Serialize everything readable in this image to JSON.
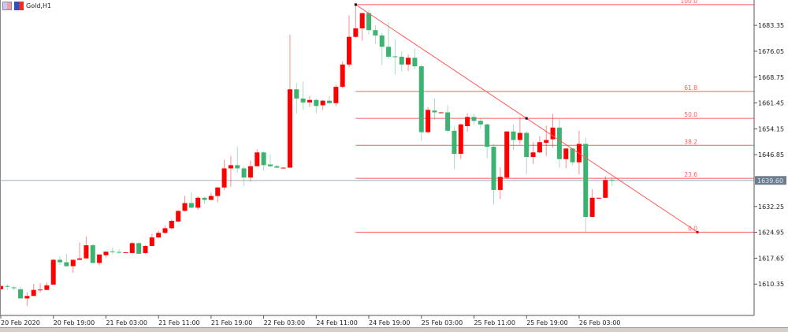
{
  "window": {
    "symbol_title": "Gold,H1",
    "icons": [
      "chart-window-icon",
      "bar-chart-icon"
    ]
  },
  "colors": {
    "bull": "#ff0000",
    "bear": "#3cb371",
    "fibo": "#ff5a5a",
    "trendline": "#ff5a5a",
    "current_price_line": "#c0c8d0",
    "current_price_label_bg": "#6b7d8f",
    "background": "#ffffff"
  },
  "chart_data": {
    "type": "candlestick",
    "title": "Gold,H1",
    "ohlc_order": [
      "open",
      "high",
      "low",
      "close"
    ],
    "candles": [
      [
        1608.9,
        1610.0,
        1608.7,
        1609.8
      ],
      [
        1609.8,
        1610.2,
        1608.7,
        1609.6
      ],
      [
        1609.4,
        1609.8,
        1608.5,
        1609.3
      ],
      [
        1608.9,
        1609.6,
        1606.3,
        1606.3
      ],
      [
        1606.3,
        1608.0,
        1604.1,
        1607.0
      ],
      [
        1607.0,
        1610.4,
        1607.0,
        1608.7
      ],
      [
        1608.6,
        1610.6,
        1608.0,
        1608.8
      ],
      [
        1608.7,
        1610.8,
        1608.7,
        1610.0
      ],
      [
        1610.2,
        1617.4,
        1610.2,
        1617.2
      ],
      [
        1617.2,
        1618.2,
        1615.7,
        1616.5
      ],
      [
        1616.5,
        1618.9,
        1615.2,
        1615.4
      ],
      [
        1615.4,
        1617.2,
        1613.5,
        1617.2
      ],
      [
        1617.2,
        1622.1,
        1617.2,
        1617.6
      ],
      [
        1617.6,
        1623.8,
        1617.6,
        1621.3
      ],
      [
        1621.3,
        1621.7,
        1616.3,
        1616.3
      ],
      [
        1616.3,
        1618.7,
        1615.6,
        1618.7
      ],
      [
        1618.5,
        1619.5,
        1617.8,
        1619.5
      ],
      [
        1619.6,
        1620.6,
        1618.9,
        1619.4
      ],
      [
        1619.4,
        1620.2,
        1618.9,
        1619.3
      ],
      [
        1619.3,
        1619.4,
        1619.2,
        1619.3
      ],
      [
        1619.1,
        1622.3,
        1619.0,
        1621.9
      ],
      [
        1621.9,
        1622.3,
        1618.9,
        1618.9
      ],
      [
        1619.1,
        1621.3,
        1618.9,
        1621.1
      ],
      [
        1621.1,
        1624.5,
        1621.0,
        1623.5
      ],
      [
        1623.5,
        1625.4,
        1623.4,
        1624.8
      ],
      [
        1624.8,
        1626.8,
        1624.5,
        1626.1
      ],
      [
        1626.1,
        1628.6,
        1625.8,
        1628.2
      ],
      [
        1628.0,
        1631.2,
        1627.8,
        1631.0
      ],
      [
        1631.0,
        1635.2,
        1630.8,
        1633.2
      ],
      [
        1633.2,
        1636.3,
        1631.7,
        1631.9
      ],
      [
        1631.9,
        1635.1,
        1631.3,
        1634.7
      ],
      [
        1634.7,
        1635.0,
        1633.0,
        1634.1
      ],
      [
        1634.1,
        1636.1,
        1634.0,
        1635.2
      ],
      [
        1635.2,
        1637.8,
        1633.4,
        1637.6
      ],
      [
        1637.6,
        1645.4,
        1636.9,
        1643.0
      ],
      [
        1643.0,
        1646.5,
        1637.8,
        1643.9
      ],
      [
        1643.9,
        1649.1,
        1641.7,
        1643.0
      ],
      [
        1643.0,
        1643.6,
        1638.0,
        1640.4
      ],
      [
        1640.4,
        1645.2,
        1639.3,
        1643.6
      ],
      [
        1643.6,
        1648.4,
        1643.4,
        1647.5
      ],
      [
        1647.5,
        1647.9,
        1642.3,
        1643.9
      ],
      [
        1644.1,
        1646.9,
        1643.2,
        1643.6
      ],
      [
        1643.6,
        1644.0,
        1643.0,
        1643.2
      ],
      [
        1643.2,
        1643.3,
        1643.1,
        1643.2
      ],
      [
        1643.2,
        1680.7,
        1643.2,
        1665.3
      ],
      [
        1665.3,
        1667.1,
        1658.4,
        1662.7
      ],
      [
        1662.7,
        1667.5,
        1659.5,
        1661.6
      ],
      [
        1661.6,
        1663.4,
        1660.3,
        1662.3
      ],
      [
        1662.3,
        1662.7,
        1658.6,
        1660.6
      ],
      [
        1660.8,
        1662.3,
        1659.5,
        1662.1
      ],
      [
        1662.1,
        1663.4,
        1661.2,
        1661.4
      ],
      [
        1661.4,
        1666.6,
        1660.6,
        1666.0
      ],
      [
        1666.0,
        1673.1,
        1665.6,
        1672.3
      ],
      [
        1672.3,
        1686.2,
        1671.6,
        1680.1
      ],
      [
        1680.1,
        1689.2,
        1679.9,
        1682.5
      ],
      [
        1682.5,
        1686.8,
        1679.0,
        1686.8
      ],
      [
        1686.8,
        1687.7,
        1680.7,
        1682.0
      ],
      [
        1682.0,
        1683.35,
        1678.1,
        1680.5
      ],
      [
        1680.5,
        1681.2,
        1672.1,
        1677.3
      ],
      [
        1677.3,
        1684.2,
        1673.8,
        1674.5
      ],
      [
        1674.6,
        1679.4,
        1669.5,
        1674.4
      ],
      [
        1674.5,
        1676.0,
        1670.3,
        1672.3
      ],
      [
        1672.3,
        1675.1,
        1670.5,
        1674.2
      ],
      [
        1674.2,
        1676.8,
        1671.0,
        1671.8
      ],
      [
        1671.8,
        1672.3,
        1650.8,
        1653.2
      ],
      [
        1653.2,
        1660.3,
        1653.0,
        1659.5
      ],
      [
        1659.3,
        1662.7,
        1656.7,
        1658.8
      ],
      [
        1658.8,
        1658.9,
        1658.7,
        1658.8
      ],
      [
        1658.8,
        1660.8,
        1653.0,
        1653.6
      ],
      [
        1653.6,
        1654.7,
        1642.8,
        1647.1
      ],
      [
        1647.1,
        1655.6,
        1645.6,
        1655.4
      ],
      [
        1654.9,
        1658.6,
        1653.4,
        1657.5
      ],
      [
        1657.5,
        1658.4,
        1655.4,
        1656.4
      ],
      [
        1656.4,
        1657.1,
        1654.3,
        1655.4
      ],
      [
        1655.4,
        1655.6,
        1645.8,
        1649.1
      ],
      [
        1649.1,
        1649.9,
        1632.8,
        1636.9
      ],
      [
        1636.9,
        1643.4,
        1634.3,
        1640.6
      ],
      [
        1640.4,
        1653.6,
        1640.0,
        1653.4
      ],
      [
        1653.4,
        1655.4,
        1648.2,
        1651.0
      ],
      [
        1651.0,
        1657.3,
        1649.9,
        1653.0
      ],
      [
        1653.0,
        1653.6,
        1641.3,
        1646.2
      ],
      [
        1646.2,
        1650.4,
        1644.3,
        1647.5
      ],
      [
        1647.5,
        1652.1,
        1647.3,
        1650.4
      ],
      [
        1650.2,
        1655.1,
        1646.5,
        1651.0
      ],
      [
        1651.2,
        1658.4,
        1648.8,
        1654.5
      ],
      [
        1654.5,
        1656.9,
        1643.2,
        1645.6
      ],
      [
        1645.6,
        1648.6,
        1643.0,
        1648.6
      ],
      [
        1648.6,
        1648.8,
        1643.9,
        1644.7
      ],
      [
        1644.7,
        1653.6,
        1641.3,
        1649.9
      ],
      [
        1649.9,
        1651.7,
        1625.0,
        1629.3
      ],
      [
        1629.3,
        1637.1,
        1629.3,
        1634.7
      ],
      [
        1634.7,
        1634.8,
        1634.6,
        1634.7
      ],
      [
        1634.7,
        1640.8,
        1634.7,
        1639.7
      ],
      [
        1639.8,
        1640.6,
        1638.0,
        1639.6
      ]
    ],
    "y_ticks": [
      "1683.35",
      "1676.05",
      "1668.75",
      "1661.45",
      "1654.15",
      "1646.85",
      "1632.25",
      "1624.95",
      "1617.65",
      "1610.35"
    ],
    "current_price": "1639.60",
    "x_ticks": [
      {
        "bar": 0,
        "label": "20 Feb 2020"
      },
      {
        "bar": 8,
        "label": "20 Feb 19:00"
      },
      {
        "bar": 16,
        "label": "21 Feb 03:00"
      },
      {
        "bar": 24,
        "label": "21 Feb 11:00"
      },
      {
        "bar": 32,
        "label": "21 Feb 19:00"
      },
      {
        "bar": 40,
        "label": "22 Feb 03:00"
      },
      {
        "bar": 48,
        "label": "24 Feb 11:00"
      },
      {
        "bar": 56,
        "label": "24 Feb 19:00"
      },
      {
        "bar": 64,
        "label": "25 Feb 03:00"
      },
      {
        "bar": 72,
        "label": "25 Feb 11:00"
      },
      {
        "bar": 80,
        "label": "25 Feb 19:00"
      },
      {
        "bar": 88,
        "label": "26 Feb 03:00"
      }
    ],
    "ylim": [
      1601.5,
      1690.5
    ],
    "grid": false,
    "fibonacci": {
      "start_bar": 54,
      "end_bar": 106,
      "high": 1689.2,
      "low": 1625.0,
      "levels": [
        {
          "label": "100.0",
          "price": 1689.2
        },
        {
          "label": "61.8",
          "price": 1664.7
        },
        {
          "label": "50.0",
          "price": 1657.1
        },
        {
          "label": "38.2",
          "price": 1649.5
        },
        {
          "label": "23.6",
          "price": 1640.2
        },
        {
          "label": "0.0",
          "price": 1625.0
        }
      ]
    },
    "trendline": {
      "start_bar": 54,
      "start_price": 1689.2,
      "end_bar": 106,
      "end_price": 1625.0
    }
  }
}
